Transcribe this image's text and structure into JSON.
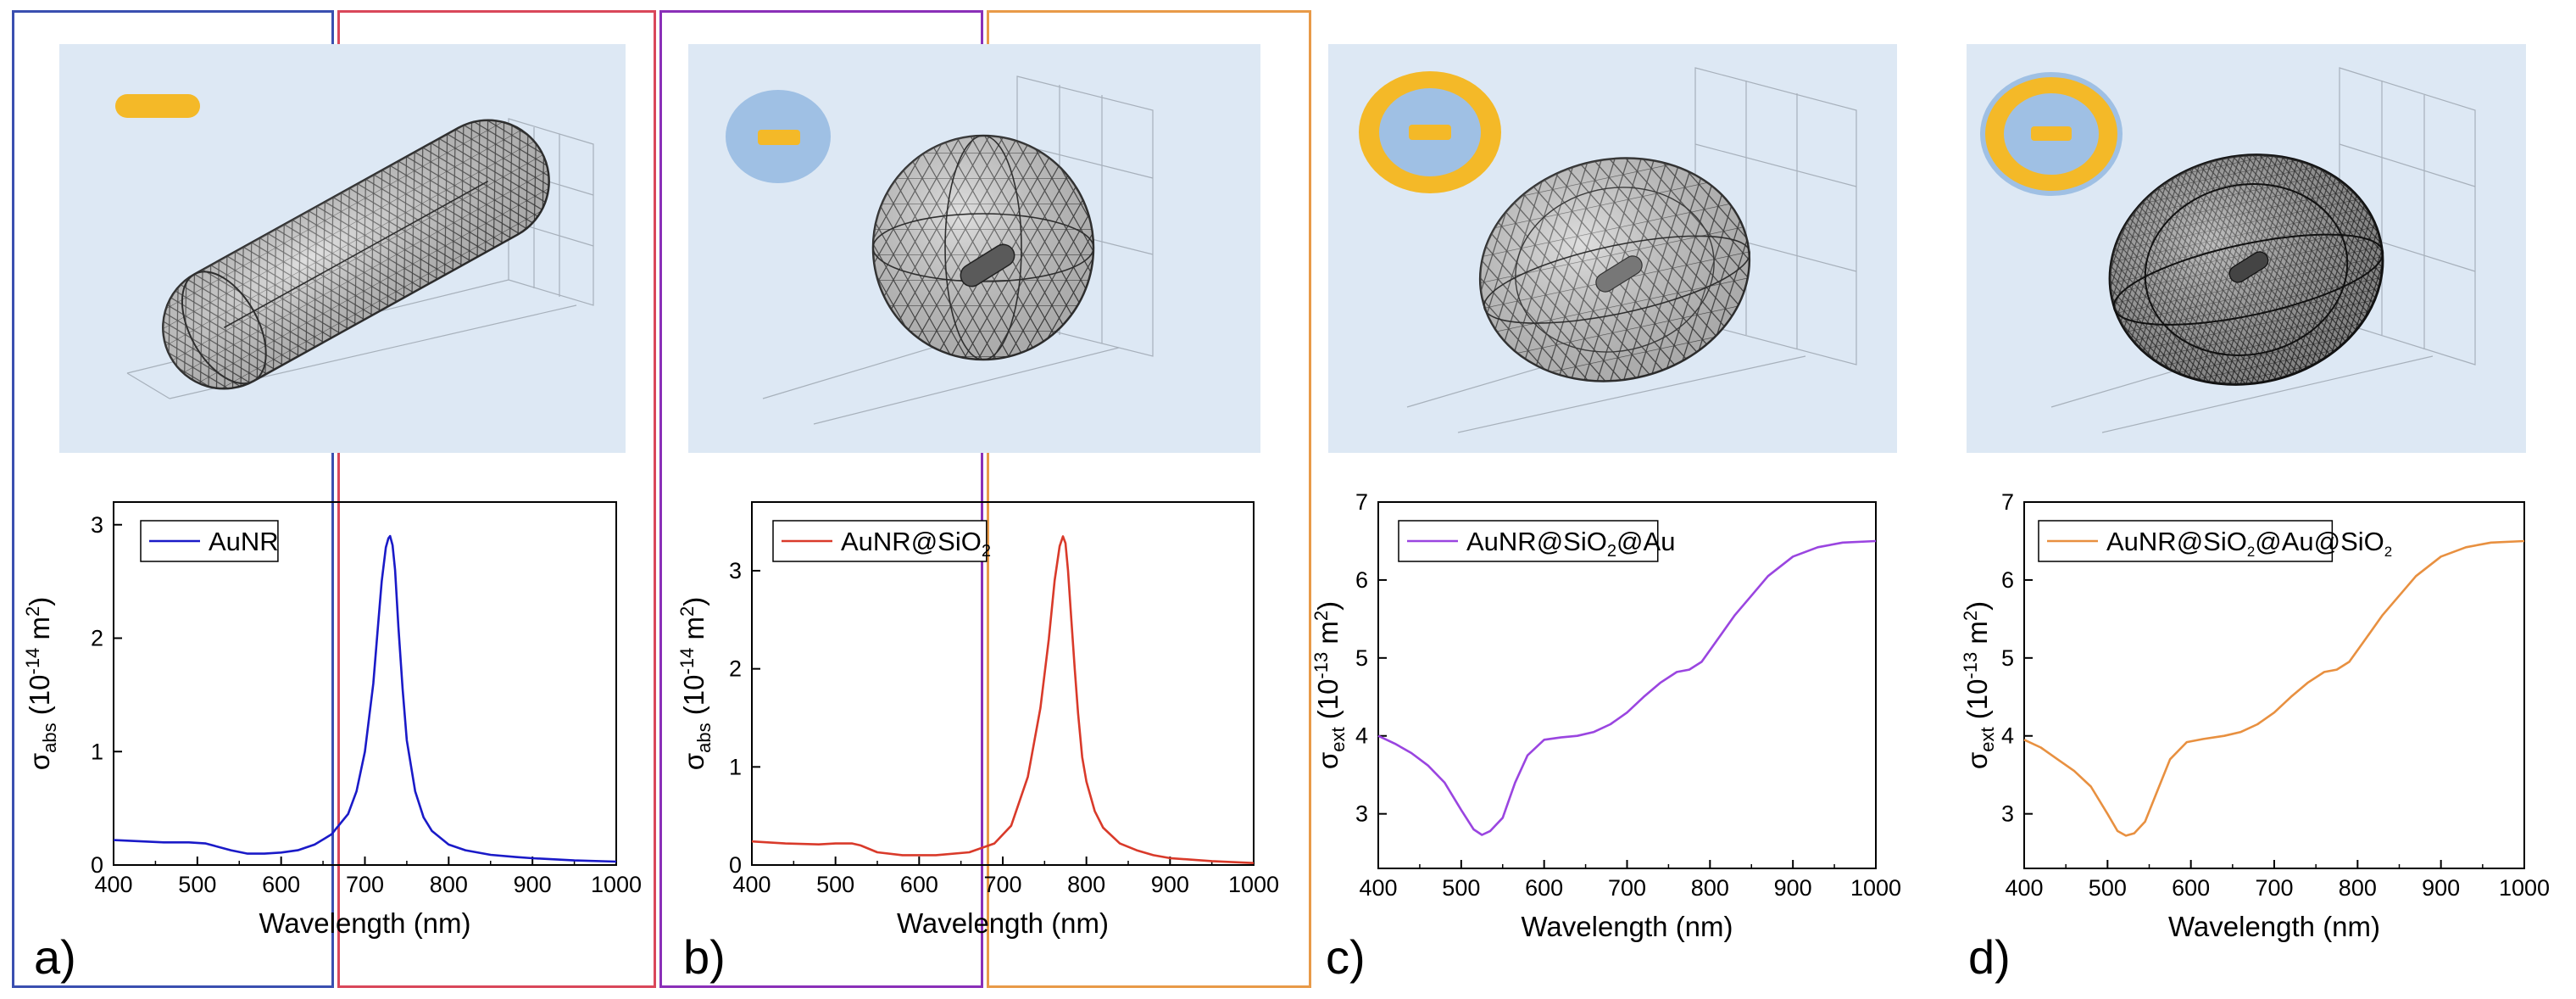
{
  "figure": {
    "colors": {
      "background_scene": "#dde8f4",
      "gold": "#f4b928",
      "silica": "#9fc0e4",
      "mesh_fill": "#c9c9c9",
      "mesh_line": "#3a3a3a"
    }
  },
  "chart_data": [
    {
      "panel_label": "a)",
      "border_color": "#3a4fb0",
      "type": "line",
      "scene_icon": "nanorod-icon",
      "xlabel": "Wavelength (nm)",
      "ylabel": {
        "sym": "σ",
        "sub": "abs",
        "open": " (10",
        "exp": "-14",
        "unit": " m",
        "unitexp": "2",
        "close": ")"
      },
      "xlim": [
        400,
        1000
      ],
      "ylim": [
        0,
        3.2
      ],
      "xticks": [
        400,
        500,
        600,
        700,
        800,
        900,
        1000
      ],
      "yticks": [
        0,
        1,
        2,
        3
      ],
      "series": [
        {
          "name": "AuNR",
          "legend": {
            "text": "AuNR",
            "sub": ""
          },
          "color": "#1a1ac8",
          "x": [
            400,
            430,
            460,
            490,
            510,
            520,
            540,
            560,
            580,
            600,
            620,
            640,
            660,
            680,
            690,
            700,
            710,
            715,
            720,
            725,
            728,
            730,
            733,
            736,
            740,
            745,
            750,
            760,
            770,
            780,
            800,
            820,
            850,
            880,
            900,
            950,
            1000
          ],
          "y": [
            0.22,
            0.21,
            0.2,
            0.2,
            0.19,
            0.17,
            0.13,
            0.1,
            0.1,
            0.11,
            0.13,
            0.18,
            0.27,
            0.45,
            0.65,
            1.0,
            1.6,
            2.05,
            2.5,
            2.8,
            2.88,
            2.9,
            2.82,
            2.6,
            2.1,
            1.55,
            1.1,
            0.65,
            0.42,
            0.3,
            0.18,
            0.13,
            0.09,
            0.07,
            0.06,
            0.04,
            0.03
          ]
        }
      ]
    },
    {
      "panel_label": "b)",
      "border_color": "#d9475a",
      "type": "line",
      "scene_icon": "silica-coated-nanorod-icon",
      "xlabel": "Wavelength (nm)",
      "ylabel": {
        "sym": "σ",
        "sub": "abs",
        "open": " (10",
        "exp": "-14",
        "unit": " m",
        "unitexp": "2",
        "close": ")"
      },
      "xlim": [
        400,
        1000
      ],
      "ylim": [
        0,
        3.7
      ],
      "xticks": [
        400,
        500,
        600,
        700,
        800,
        900,
        1000
      ],
      "yticks": [
        0,
        1,
        2,
        3
      ],
      "series": [
        {
          "name": "AuNR@SiO2",
          "legend": {
            "text": "AuNR@SiO",
            "sub": "2"
          },
          "color": "#d93a2a",
          "x": [
            400,
            440,
            480,
            500,
            520,
            530,
            550,
            580,
            620,
            660,
            690,
            710,
            730,
            745,
            755,
            762,
            768,
            772,
            775,
            778,
            782,
            786,
            790,
            795,
            800,
            810,
            820,
            840,
            860,
            880,
            900,
            950,
            1000
          ],
          "y": [
            0.24,
            0.22,
            0.21,
            0.22,
            0.22,
            0.2,
            0.13,
            0.1,
            0.1,
            0.13,
            0.22,
            0.4,
            0.9,
            1.6,
            2.3,
            2.9,
            3.25,
            3.35,
            3.28,
            3.0,
            2.5,
            2.0,
            1.55,
            1.1,
            0.85,
            0.55,
            0.38,
            0.22,
            0.15,
            0.1,
            0.07,
            0.04,
            0.02
          ]
        }
      ]
    },
    {
      "panel_label": "c)",
      "border_color": "#8a2fb8",
      "type": "line",
      "scene_icon": "gold-shell-nanorod-icon",
      "xlabel": "Wavelength (nm)",
      "ylabel": {
        "sym": "σ",
        "sub": "ext",
        "open": " (10",
        "exp": "-13",
        "unit": " m",
        "unitexp": "2",
        "close": ")"
      },
      "xlim": [
        400,
        1000
      ],
      "ylim": [
        2.3,
        7
      ],
      "xticks": [
        400,
        500,
        600,
        700,
        800,
        900,
        1000
      ],
      "yticks": [
        3,
        4,
        5,
        6,
        7
      ],
      "series": [
        {
          "name": "AuNR@SiO2@Au",
          "legend": {
            "text": "AuNR@SiO",
            "sub": "2",
            "tail": "@Au"
          },
          "color": "#9a45e0",
          "x": [
            400,
            420,
            440,
            460,
            480,
            500,
            515,
            525,
            535,
            550,
            565,
            580,
            600,
            620,
            640,
            660,
            680,
            700,
            720,
            740,
            760,
            775,
            790,
            810,
            830,
            850,
            870,
            900,
            930,
            960,
            1000
          ],
          "y": [
            4.0,
            3.9,
            3.78,
            3.62,
            3.4,
            3.05,
            2.8,
            2.73,
            2.78,
            2.95,
            3.4,
            3.75,
            3.95,
            3.98,
            4.0,
            4.05,
            4.15,
            4.3,
            4.5,
            4.68,
            4.82,
            4.85,
            4.95,
            5.25,
            5.55,
            5.8,
            6.05,
            6.3,
            6.42,
            6.48,
            6.5
          ]
        }
      ]
    },
    {
      "panel_label": "d)",
      "border_color": "#e89a48",
      "type": "line",
      "scene_icon": "multilayer-nanorod-icon",
      "xlabel": "Wavelength (nm)",
      "ylabel": {
        "sym": "σ",
        "sub": "ext",
        "open": " (10",
        "exp": "-13",
        "unit": " m",
        "unitexp": "2",
        "close": ")"
      },
      "xlim": [
        400,
        1000
      ],
      "ylim": [
        2.3,
        7
      ],
      "xticks": [
        400,
        500,
        600,
        700,
        800,
        900,
        1000
      ],
      "yticks": [
        3,
        4,
        5,
        6,
        7
      ],
      "series": [
        {
          "name": "AuNR@SiO2@Au@SiO2",
          "legend": {
            "text": "AuNR@SiO",
            "sub": "2",
            "tail": "@Au@SiO",
            "sub2": "2"
          },
          "color": "#e89040",
          "x": [
            400,
            420,
            440,
            460,
            480,
            500,
            512,
            522,
            532,
            545,
            560,
            575,
            595,
            615,
            640,
            660,
            680,
            700,
            720,
            740,
            760,
            775,
            790,
            810,
            830,
            850,
            870,
            900,
            930,
            960,
            1000
          ],
          "y": [
            3.95,
            3.85,
            3.7,
            3.55,
            3.35,
            3.0,
            2.78,
            2.72,
            2.75,
            2.9,
            3.3,
            3.7,
            3.92,
            3.96,
            4.0,
            4.05,
            4.15,
            4.3,
            4.5,
            4.68,
            4.82,
            4.85,
            4.95,
            5.25,
            5.55,
            5.8,
            6.05,
            6.3,
            6.42,
            6.48,
            6.5
          ]
        }
      ]
    }
  ]
}
